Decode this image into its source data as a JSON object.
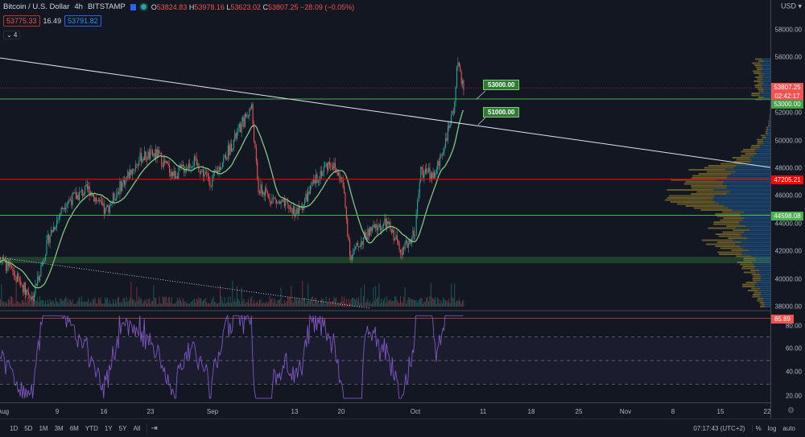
{
  "header": {
    "symbol": "Bitcoin / U.S. Dollar",
    "interval": "4h",
    "exchange": "BITSTAMP",
    "ohlc": {
      "o_label": "O",
      "o": "53824.83",
      "h_label": "H",
      "h": "53978.16",
      "l_label": "L",
      "l": "53623.02",
      "c_label": "C",
      "c": "53807.25",
      "change": "−28.09 (−0.05%)"
    },
    "bid": "53775.33",
    "spread": "16.49",
    "ask": "53791.82",
    "indicators_toggle": "⌄ 4"
  },
  "price_axis": {
    "currency": "USD ▾",
    "labels": [
      "58000.00",
      "56000.00",
      "52000.00",
      "50000.00",
      "48000.00",
      "46000.00",
      "44000.00",
      "42000.00",
      "40000.00",
      "38000.00"
    ],
    "last_price": "53807.25",
    "countdown": "02:42:17",
    "level_53000": "53000.00",
    "level_47205": "47205.21",
    "level_44598": "44598.08"
  },
  "rsi_axis": {
    "labels": [
      "80.00",
      "60.00",
      "40.00",
      "20.00"
    ],
    "current": "85.89"
  },
  "annotations": {
    "label_1": "53000.00",
    "label_2": "51000.00"
  },
  "time_axis": [
    "Aug",
    "9",
    "16",
    "23",
    "Sep",
    "13",
    "20",
    "Oct",
    "11",
    "18",
    "25",
    "Nov",
    "8",
    "15",
    "22"
  ],
  "toolbar": {
    "ranges": [
      "1D",
      "5D",
      "1M",
      "3M",
      "6M",
      "YTD",
      "1Y",
      "5Y",
      "All"
    ],
    "time": "07:17:43 (UTC+2)",
    "percent": "%",
    "log": "log",
    "auto": "auto"
  },
  "colors": {
    "up": "#26a69a",
    "down": "#ef5350",
    "sma": "#81c784",
    "resistance": "#ff0000",
    "support": "#4caf50",
    "rsi": "#7e57c2"
  }
}
